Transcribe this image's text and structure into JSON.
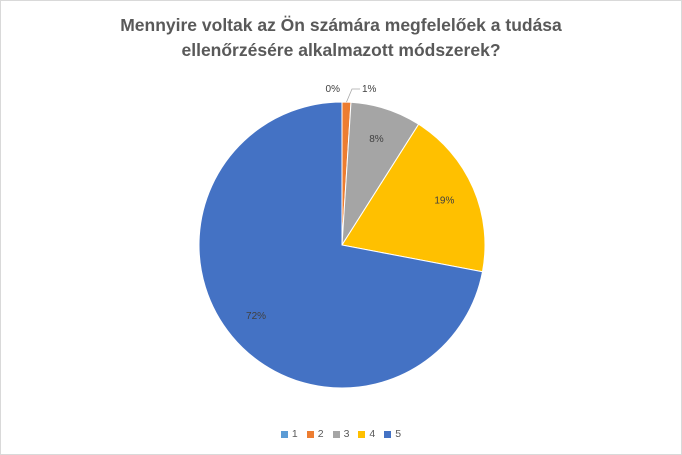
{
  "chart_data": {
    "type": "pie",
    "title_lines": [
      "Mennyire voltak az Ön számára  megfelelőek a tudása",
      "ellenőrzésére alkalmazott  módszerek?"
    ],
    "categories": [
      "1",
      "2",
      "3",
      "4",
      "5"
    ],
    "values": [
      0,
      1,
      8,
      19,
      72
    ],
    "labels": [
      "0%",
      "1%",
      "8%",
      "19%",
      "72%"
    ],
    "colors": [
      "#5b9bd5",
      "#ed7d31",
      "#a5a5a5",
      "#ffc000",
      "#4472c4"
    ],
    "legend_position": "bottom"
  }
}
